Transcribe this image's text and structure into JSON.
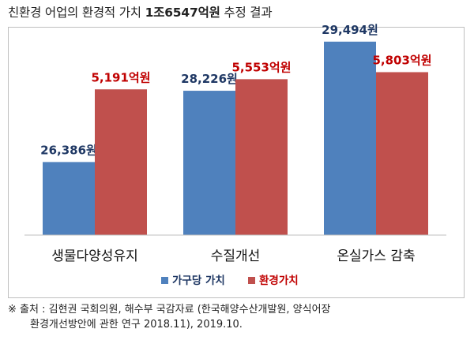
{
  "title": {
    "prefix": "친환경 어업의 환경적 가치",
    "highlight": "1조6547억원",
    "suffix": "추정 결과"
  },
  "chart_data": {
    "type": "bar",
    "categories": [
      "생물다양성유지",
      "수질개선",
      "온실가스 감축"
    ],
    "series": [
      {
        "name": "가구당 가치",
        "values": [
          26386,
          28226,
          29494
        ],
        "labels": [
          "26,386원",
          "28,226원",
          "29,494원"
        ],
        "color": "#4f81bd",
        "label_color": "#1f3864"
      },
      {
        "name": "환경가치",
        "values": [
          5191,
          5553,
          5803
        ],
        "labels": [
          "5,191억원",
          "5,553억원",
          "5,803억원"
        ],
        "color": "#c0504d",
        "label_color": "#c00000"
      }
    ],
    "legend_position": "bottom",
    "grid": false
  },
  "source": {
    "line1": "※ 출처 : 김현권 국회의원, 해수부 국감자료 (한국해양수산개발원, 양식어장",
    "line2": "환경개선방안에 관한 연구 2018.11), 2019.10."
  }
}
